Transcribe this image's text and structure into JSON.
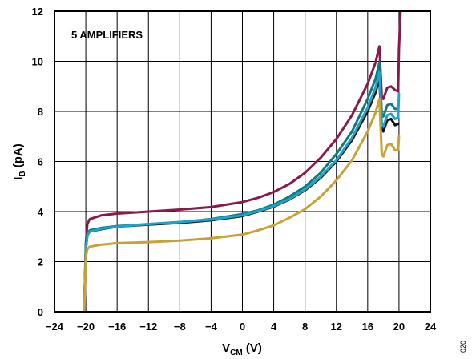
{
  "chart_data": {
    "type": "line",
    "annotation": "5 AMPLIFIERS",
    "xlabel_main": "V",
    "xlabel_sub": "CM",
    "xlabel_unit": " (V)",
    "ylabel_main": "I",
    "ylabel_sub": "B",
    "ylabel_unit": " (pA)",
    "figure_id": "020",
    "xlim": [
      -24,
      24
    ],
    "ylim": [
      0,
      12
    ],
    "grid": true,
    "x_ticks": [
      -24,
      -20,
      -16,
      -12,
      -8,
      -4,
      0,
      4,
      8,
      12,
      16,
      20,
      24
    ],
    "y_ticks": [
      0,
      2,
      4,
      6,
      8,
      10,
      12
    ],
    "x_tick_labels": [
      "−24",
      "−20",
      "−16",
      "−12",
      "−8",
      "−4",
      "0",
      "4",
      "8",
      "12",
      "16",
      "20",
      "24"
    ],
    "y_tick_labels": [
      "0",
      "2",
      "4",
      "6",
      "8",
      "10",
      "12"
    ],
    "series": [
      {
        "color": "#8b1a4a",
        "points": [
          [
            -20.2,
            0
          ],
          [
            -20.0,
            2.7
          ],
          [
            -19.8,
            3.5
          ],
          [
            -19.5,
            3.7
          ],
          [
            -18,
            3.85
          ],
          [
            -16,
            3.92
          ],
          [
            -12,
            4.0
          ],
          [
            -8,
            4.08
          ],
          [
            -4,
            4.18
          ],
          [
            0,
            4.38
          ],
          [
            2,
            4.55
          ],
          [
            4,
            4.78
          ],
          [
            6,
            5.1
          ],
          [
            8,
            5.55
          ],
          [
            10,
            6.15
          ],
          [
            12,
            6.9
          ],
          [
            14,
            7.85
          ],
          [
            16,
            9.1
          ],
          [
            17,
            9.95
          ],
          [
            17.5,
            10.6
          ],
          [
            17.8,
            8.6
          ],
          [
            18,
            8.5
          ],
          [
            18.5,
            8.95
          ],
          [
            19,
            9.0
          ],
          [
            19.5,
            8.85
          ],
          [
            19.9,
            8.8
          ],
          [
            20.0,
            10.5
          ],
          [
            20.2,
            12
          ]
        ]
      },
      {
        "color": "#127a7a",
        "points": [
          [
            -20.2,
            0
          ],
          [
            -20.0,
            2.5
          ],
          [
            -19.8,
            3.1
          ],
          [
            -19.5,
            3.25
          ],
          [
            -18,
            3.35
          ],
          [
            -16,
            3.42
          ],
          [
            -12,
            3.5
          ],
          [
            -8,
            3.58
          ],
          [
            -4,
            3.7
          ],
          [
            0,
            3.9
          ],
          [
            2,
            4.05
          ],
          [
            4,
            4.28
          ],
          [
            6,
            4.6
          ],
          [
            8,
            5.0
          ],
          [
            10,
            5.55
          ],
          [
            12,
            6.3
          ],
          [
            14,
            7.2
          ],
          [
            16,
            8.5
          ],
          [
            17,
            9.3
          ],
          [
            17.5,
            9.95
          ],
          [
            17.8,
            7.9
          ],
          [
            18,
            7.8
          ],
          [
            18.5,
            8.25
          ],
          [
            19,
            8.3
          ],
          [
            19.5,
            8.1
          ],
          [
            19.9,
            8.1
          ]
        ]
      },
      {
        "color": "#111111",
        "points": [
          [
            -20.2,
            0
          ],
          [
            -20.0,
            2.5
          ],
          [
            -19.8,
            3.05
          ],
          [
            -19.5,
            3.2
          ],
          [
            -18,
            3.3
          ],
          [
            -16,
            3.4
          ],
          [
            -12,
            3.48
          ],
          [
            -8,
            3.55
          ],
          [
            -4,
            3.65
          ],
          [
            0,
            3.82
          ],
          [
            2,
            4.0
          ],
          [
            4,
            4.2
          ],
          [
            6,
            4.48
          ],
          [
            8,
            4.85
          ],
          [
            10,
            5.35
          ],
          [
            12,
            6.0
          ],
          [
            14,
            6.85
          ],
          [
            16,
            8.0
          ],
          [
            17,
            8.75
          ],
          [
            17.5,
            9.3
          ],
          [
            17.8,
            7.3
          ],
          [
            18,
            7.2
          ],
          [
            18.5,
            7.65
          ],
          [
            19,
            7.7
          ],
          [
            19.5,
            7.45
          ],
          [
            19.9,
            7.5
          ]
        ]
      },
      {
        "color": "#1aa6cc",
        "points": [
          [
            -20.2,
            0
          ],
          [
            -20.0,
            2.5
          ],
          [
            -19.8,
            3.05
          ],
          [
            -19.5,
            3.2
          ],
          [
            -18,
            3.32
          ],
          [
            -16,
            3.4
          ],
          [
            -12,
            3.5
          ],
          [
            -8,
            3.58
          ],
          [
            -4,
            3.68
          ],
          [
            0,
            3.85
          ],
          [
            2,
            4.02
          ],
          [
            4,
            4.22
          ],
          [
            6,
            4.5
          ],
          [
            8,
            4.88
          ],
          [
            10,
            5.4
          ],
          [
            12,
            6.05
          ],
          [
            14,
            6.95
          ],
          [
            16,
            8.15
          ],
          [
            17,
            8.95
          ],
          [
            17.5,
            9.55
          ],
          [
            17.8,
            7.5
          ],
          [
            18,
            7.4
          ],
          [
            18.5,
            7.85
          ],
          [
            19,
            7.9
          ],
          [
            19.5,
            7.7
          ],
          [
            19.9,
            7.75
          ],
          [
            20.0,
            8.7
          ]
        ]
      },
      {
        "color": "#c9a135",
        "points": [
          [
            -20.2,
            0
          ],
          [
            -20.0,
            2.2
          ],
          [
            -19.8,
            2.5
          ],
          [
            -19.5,
            2.6
          ],
          [
            -18,
            2.68
          ],
          [
            -16,
            2.74
          ],
          [
            -12,
            2.78
          ],
          [
            -8,
            2.84
          ],
          [
            -4,
            2.93
          ],
          [
            0,
            3.08
          ],
          [
            2,
            3.25
          ],
          [
            4,
            3.45
          ],
          [
            6,
            3.75
          ],
          [
            8,
            4.1
          ],
          [
            10,
            4.6
          ],
          [
            12,
            5.25
          ],
          [
            14,
            6.05
          ],
          [
            16,
            7.2
          ],
          [
            17,
            7.95
          ],
          [
            17.5,
            8.5
          ],
          [
            17.8,
            6.3
          ],
          [
            18,
            6.2
          ],
          [
            18.5,
            6.65
          ],
          [
            19,
            6.7
          ],
          [
            19.5,
            6.45
          ],
          [
            19.9,
            6.45
          ],
          [
            20.0,
            7.0
          ]
        ]
      }
    ]
  }
}
